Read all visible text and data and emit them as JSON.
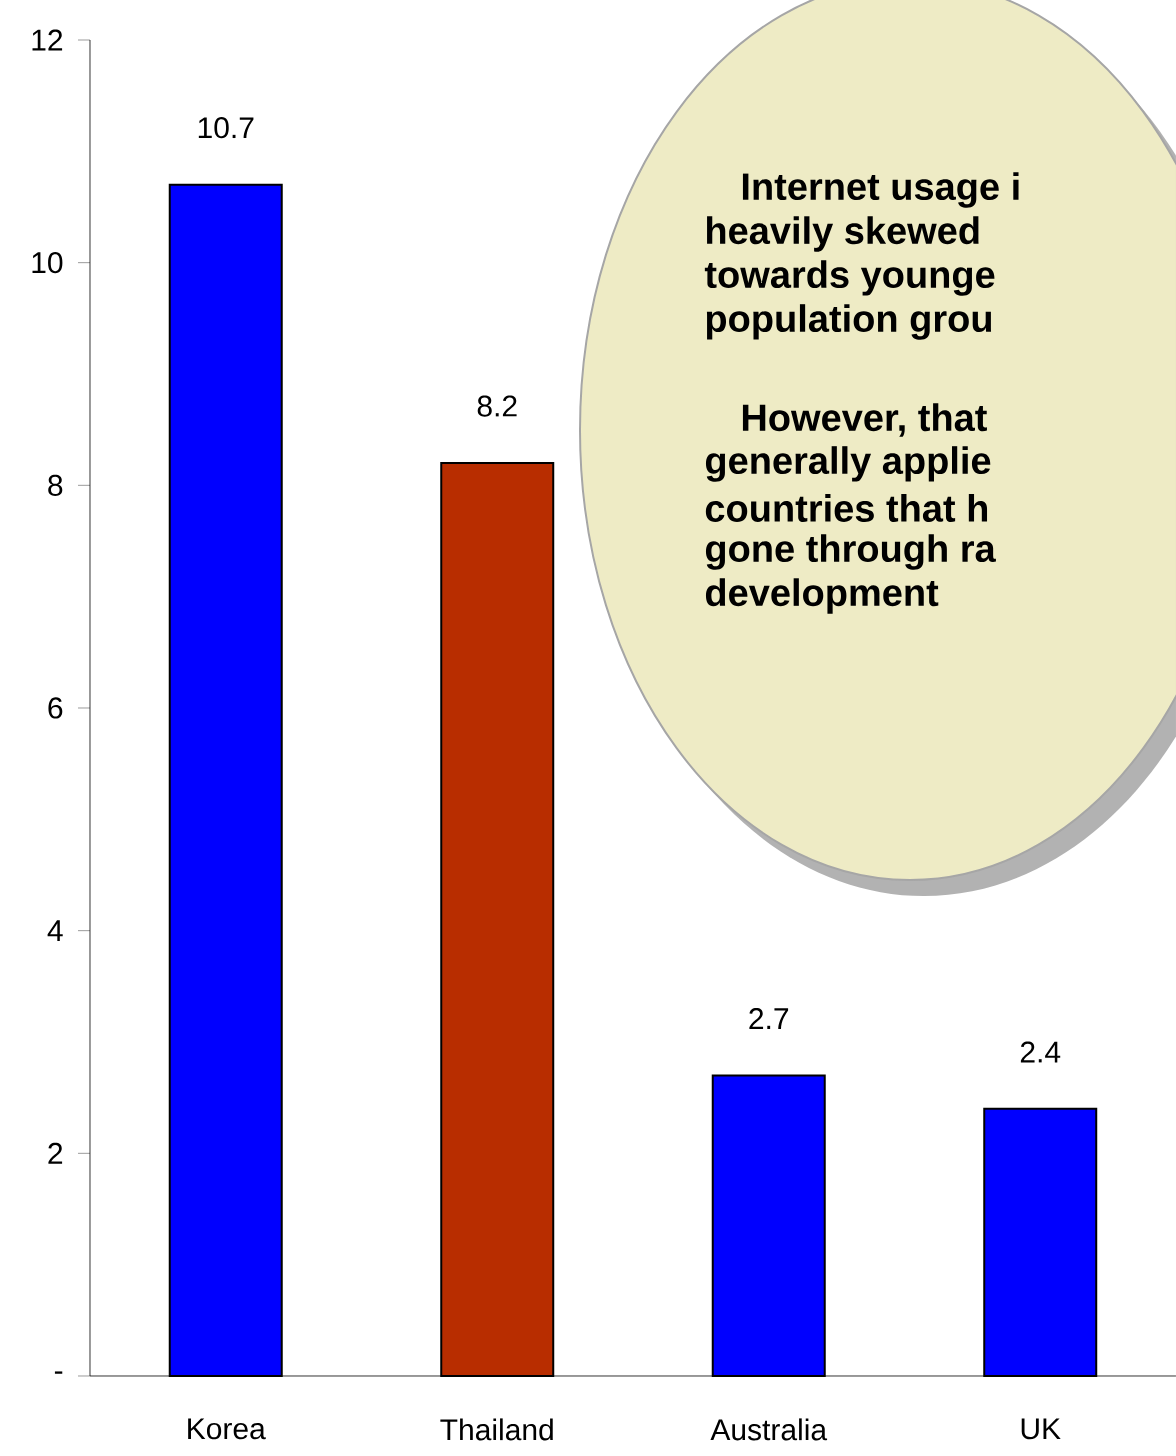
{
  "chart_data": {
    "type": "bar",
    "categories": [
      "Korea",
      "Thailand",
      "Australia",
      "UK"
    ],
    "values": [
      10.7,
      8.2,
      2.7,
      2.4
    ],
    "colors": [
      "#0000ff",
      "#b82d00",
      "#0000ff",
      "#0000ff"
    ],
    "ylim": [
      0,
      12
    ],
    "yticks": [
      {
        "value": 0,
        "label": "-"
      },
      2,
      4,
      6,
      8,
      10,
      12
    ],
    "data_labels": true,
    "grid": false,
    "annotations": [
      "Internet usage i",
      "heavily skewed",
      "towards younge",
      "population grou",
      "However,  that",
      "generally applie",
      "countries that h",
      "gone through ra",
      "development"
    ]
  }
}
